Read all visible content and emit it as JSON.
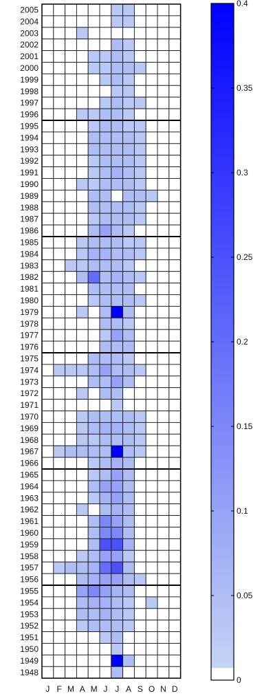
{
  "chart_data": {
    "type": "heatmap",
    "x_categories": [
      "J",
      "F",
      "M",
      "A",
      "M",
      "J",
      "J",
      "A",
      "S",
      "O",
      "N",
      "D"
    ],
    "y_categories": [
      2005,
      2004,
      2003,
      2002,
      2001,
      2000,
      1999,
      1998,
      1997,
      1996,
      1995,
      1994,
      1993,
      1992,
      1991,
      1990,
      1989,
      1988,
      1987,
      1986,
      1985,
      1984,
      1983,
      1982,
      1981,
      1980,
      1979,
      1978,
      1977,
      1976,
      1975,
      1974,
      1973,
      1972,
      1971,
      1970,
      1969,
      1968,
      1967,
      1966,
      1965,
      1964,
      1963,
      1962,
      1961,
      1960,
      1959,
      1958,
      1957,
      1956,
      1955,
      1954,
      1953,
      1952,
      1951,
      1950,
      1949,
      1948
    ],
    "values": [
      [
        0,
        0,
        0,
        0,
        0,
        0,
        0.03,
        0.03,
        0,
        0,
        0,
        0
      ],
      [
        0,
        0,
        0,
        0,
        0,
        0,
        0.03,
        0.03,
        0,
        0,
        0,
        0
      ],
      [
        0,
        0,
        0,
        0.03,
        0,
        0,
        0,
        0,
        0,
        0,
        0,
        0
      ],
      [
        0,
        0,
        0,
        0,
        0,
        0,
        0.05,
        0.03,
        0,
        0,
        0,
        0
      ],
      [
        0,
        0,
        0,
        0,
        0.03,
        0.03,
        0.05,
        0.03,
        0,
        0,
        0,
        0
      ],
      [
        0,
        0,
        0,
        0,
        0.03,
        0.03,
        0.05,
        0.05,
        0.03,
        0,
        0,
        0
      ],
      [
        0,
        0,
        0,
        0,
        0,
        0.03,
        0.05,
        0.03,
        0,
        0,
        0,
        0
      ],
      [
        0,
        0,
        0,
        0,
        0,
        0,
        0.03,
        0.03,
        0,
        0,
        0,
        0
      ],
      [
        0,
        0,
        0,
        0,
        0,
        0.03,
        0.05,
        0.03,
        0.03,
        0,
        0,
        0
      ],
      [
        0,
        0,
        0,
        0.03,
        0.03,
        0.05,
        0.05,
        0.03,
        0,
        0,
        0,
        0
      ],
      [
        0,
        0,
        0,
        0,
        0.03,
        0.05,
        0.05,
        0.03,
        0.03,
        0,
        0,
        0
      ],
      [
        0,
        0,
        0,
        0,
        0.05,
        0.05,
        0.05,
        0.05,
        0.03,
        0,
        0,
        0
      ],
      [
        0,
        0,
        0,
        0,
        0.05,
        0.05,
        0.05,
        0.05,
        0.03,
        0,
        0,
        0
      ],
      [
        0,
        0,
        0,
        0,
        0.03,
        0.05,
        0.05,
        0.05,
        0.03,
        0,
        0,
        0
      ],
      [
        0,
        0,
        0,
        0,
        0.03,
        0.05,
        0.07,
        0.05,
        0.03,
        0,
        0,
        0
      ],
      [
        0,
        0,
        0,
        0.03,
        0.03,
        0.05,
        0.05,
        0.05,
        0.03,
        0,
        0,
        0
      ],
      [
        0,
        0,
        0,
        0,
        0.05,
        0.05,
        0,
        0.05,
        0.05,
        0.03,
        0,
        0
      ],
      [
        0,
        0,
        0,
        0,
        0.05,
        0.05,
        0.05,
        0.05,
        0.03,
        0,
        0,
        0
      ],
      [
        0,
        0,
        0,
        0,
        0.03,
        0.05,
        0.05,
        0.05,
        0.03,
        0,
        0,
        0
      ],
      [
        0,
        0,
        0,
        0,
        0.05,
        0.1,
        0.05,
        0.03,
        0,
        0,
        0,
        0
      ],
      [
        0,
        0,
        0,
        0.03,
        0.05,
        0.05,
        0.05,
        0.03,
        0.03,
        0,
        0,
        0
      ],
      [
        0,
        0,
        0,
        0.03,
        0.07,
        0.07,
        0.05,
        0.05,
        0.03,
        0,
        0,
        0
      ],
      [
        0,
        0,
        0.03,
        0.03,
        0.05,
        0.05,
        0.05,
        0.03,
        0,
        0,
        0,
        0
      ],
      [
        0,
        0,
        0,
        0.05,
        0.2,
        0.05,
        0.07,
        0.05,
        0.03,
        0,
        0,
        0
      ],
      [
        0,
        0,
        0,
        0,
        0.05,
        0.05,
        0.05,
        0.05,
        0,
        0,
        0,
        0
      ],
      [
        0,
        0,
        0,
        0,
        0.03,
        0.05,
        0.05,
        0.05,
        0.03,
        0,
        0,
        0
      ],
      [
        0,
        0,
        0,
        0.03,
        0,
        0.05,
        0.4,
        0.05,
        0,
        0,
        0,
        0
      ],
      [
        0,
        0,
        0,
        0,
        0,
        0.05,
        0.05,
        0.03,
        0,
        0,
        0,
        0
      ],
      [
        0,
        0,
        0,
        0,
        0,
        0.03,
        0.1,
        0.05,
        0,
        0,
        0,
        0
      ],
      [
        0,
        0,
        0,
        0,
        0,
        0.05,
        0.05,
        0.05,
        0,
        0,
        0,
        0
      ],
      [
        0,
        0,
        0,
        0,
        0.05,
        0.05,
        0.05,
        0.03,
        0,
        0,
        0,
        0
      ],
      [
        0,
        0.03,
        0.03,
        0.03,
        0.05,
        0.1,
        0.05,
        0.05,
        0.03,
        0,
        0,
        0
      ],
      [
        0,
        0,
        0,
        0,
        0.05,
        0.05,
        0.1,
        0.05,
        0,
        0,
        0,
        0
      ],
      [
        0,
        0,
        0,
        0.03,
        0,
        0.05,
        0.05,
        0,
        0,
        0,
        0,
        0
      ],
      [
        0,
        0,
        0,
        0,
        0,
        0,
        0.03,
        0,
        0,
        0,
        0,
        0
      ],
      [
        0,
        0,
        0,
        0.03,
        0.05,
        0.05,
        0.05,
        0.05,
        0.03,
        0,
        0,
        0
      ],
      [
        0,
        0,
        0,
        0.03,
        0.05,
        0.07,
        0.07,
        0.05,
        0.03,
        0,
        0,
        0
      ],
      [
        0,
        0,
        0,
        0.03,
        0.03,
        0.05,
        0.05,
        0.05,
        0.03,
        0,
        0,
        0
      ],
      [
        0,
        0.03,
        0.05,
        0.05,
        0.05,
        0.05,
        0.4,
        0.05,
        0.03,
        0,
        0,
        0
      ],
      [
        0,
        0,
        0,
        0,
        0.03,
        0.05,
        0.07,
        0.05,
        0,
        0,
        0,
        0
      ],
      [
        0,
        0,
        0,
        0,
        0.03,
        0.05,
        0.1,
        0.05,
        0,
        0,
        0,
        0
      ],
      [
        0,
        0,
        0,
        0,
        0.05,
        0.1,
        0.1,
        0.05,
        0,
        0,
        0,
        0
      ],
      [
        0,
        0,
        0,
        0,
        0.03,
        0.07,
        0.1,
        0.05,
        0,
        0,
        0,
        0
      ],
      [
        0,
        0,
        0,
        0.03,
        0,
        0.05,
        0.07,
        0.05,
        0,
        0,
        0,
        0
      ],
      [
        0,
        0,
        0,
        0,
        0.05,
        0.15,
        0.1,
        0.05,
        0,
        0,
        0,
        0
      ],
      [
        0,
        0,
        0,
        0,
        0.05,
        0.15,
        0.15,
        0.05,
        0,
        0,
        0,
        0
      ],
      [
        0,
        0,
        0,
        0,
        0.05,
        0.25,
        0.25,
        0.07,
        0,
        0,
        0,
        0
      ],
      [
        0,
        0,
        0,
        0.03,
        0.05,
        0.1,
        0.1,
        0.03,
        0,
        0,
        0,
        0
      ],
      [
        0,
        0.03,
        0.05,
        0.05,
        0.07,
        0.2,
        0.25,
        0.05,
        0,
        0,
        0,
        0
      ],
      [
        0,
        0,
        0,
        0.05,
        0.07,
        0.1,
        0.1,
        0.05,
        0.03,
        0,
        0,
        0
      ],
      [
        0,
        0,
        0,
        0.1,
        0.15,
        0.1,
        0.07,
        0.05,
        0,
        0,
        0,
        0
      ],
      [
        0,
        0,
        0,
        0.05,
        0.07,
        0.07,
        0.05,
        0.03,
        0,
        0.03,
        0,
        0
      ],
      [
        0,
        0,
        0,
        0.05,
        0.05,
        0.07,
        0.05,
        0.03,
        0,
        0,
        0,
        0
      ],
      [
        0,
        0,
        0,
        0.03,
        0.05,
        0.05,
        0.05,
        0.03,
        0,
        0,
        0,
        0
      ],
      [
        0,
        0,
        0,
        0,
        0,
        0.03,
        0.05,
        0,
        0,
        0,
        0,
        0
      ],
      [
        0,
        0,
        0,
        0,
        0,
        0,
        0.03,
        0,
        0,
        0,
        0,
        0
      ],
      [
        0,
        0,
        0,
        0,
        0,
        0,
        0.4,
        0.05,
        0,
        0,
        0,
        0
      ],
      [
        0,
        0,
        0,
        0,
        0,
        0,
        0.05,
        0,
        0,
        0,
        0,
        0
      ]
    ],
    "colorbar": {
      "range": [
        0,
        0.4
      ],
      "ticks": [
        "0",
        "0.05",
        "0.1",
        "0.15",
        "0.2",
        "0.25",
        "0.3",
        "0.35",
        "0.4"
      ],
      "colors": {
        "low": "#c8d8f4",
        "high": "#0000ff"
      }
    },
    "grid": true
  }
}
